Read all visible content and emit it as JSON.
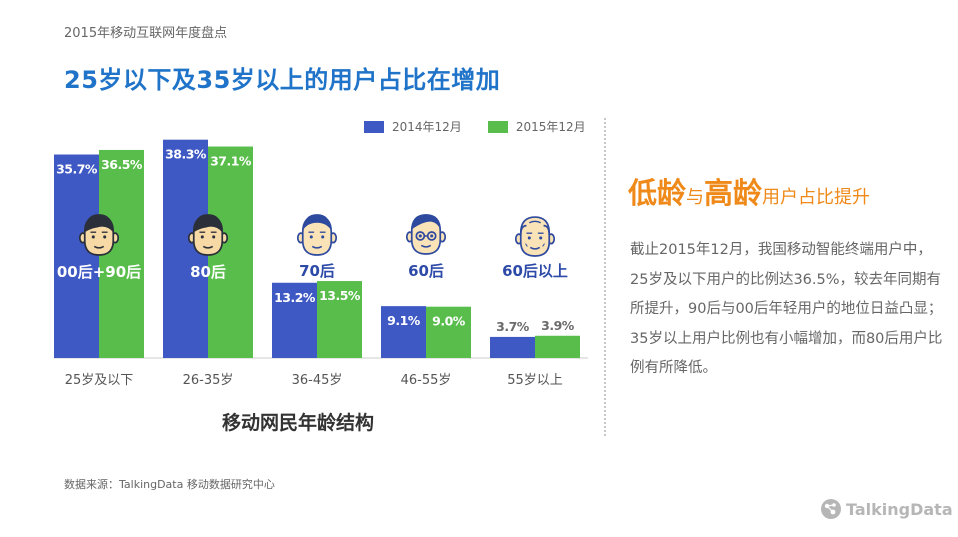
{
  "header": {
    "caption": "2015年移动互联网年度盘点",
    "title": "25岁以下及35岁以上的用户占比在增加"
  },
  "colors": {
    "series2014": "#3e58c4",
    "series2015": "#58bd4a",
    "accent": "#ef8a1a",
    "title": "#1f73c8"
  },
  "chart_data": {
    "type": "bar",
    "title": "移动网民年龄结构",
    "categories": [
      "25岁及以下",
      "26-35岁",
      "36-45岁",
      "46-55岁",
      "55岁以上"
    ],
    "series": [
      {
        "name": "2014年12月",
        "values": [
          35.7,
          38.3,
          13.2,
          9.1,
          3.7
        ],
        "labels": [
          "35.7%",
          "38.3%",
          "13.2%",
          "9.1%",
          "3.7%"
        ]
      },
      {
        "name": "2015年12月",
        "values": [
          36.5,
          37.1,
          13.5,
          9.0,
          3.9
        ],
        "labels": [
          "36.5%",
          "37.1%",
          "13.5%",
          "9.0%",
          "3.9%"
        ]
      }
    ],
    "groups": [
      "00后+90后",
      "80后",
      "70后",
      "60后",
      "60后以上"
    ],
    "ylim": [
      0,
      40
    ],
    "legend": "top-right",
    "grid": false
  },
  "side": {
    "heading_a": "低龄",
    "connector": "与",
    "heading_b": "高龄",
    "heading_rest": "用户占比提升",
    "body": "截止2015年12月，我国移动智能终端用户中，25岁及以下用户的比例达36.5%，较去年同期有所提升，90后与00后年轻用户的地位日益凸显；35岁以上用户比例也有小幅增加，而80后用户比例有所降低。"
  },
  "footer": {
    "source": "数据来源：TalkingData 移动数据研究中心",
    "brand": "TalkingData"
  },
  "icons": [
    "young-face-icon",
    "young-face-icon",
    "middle-aged-face-icon",
    "glasses-face-icon",
    "elder-face-icon"
  ]
}
